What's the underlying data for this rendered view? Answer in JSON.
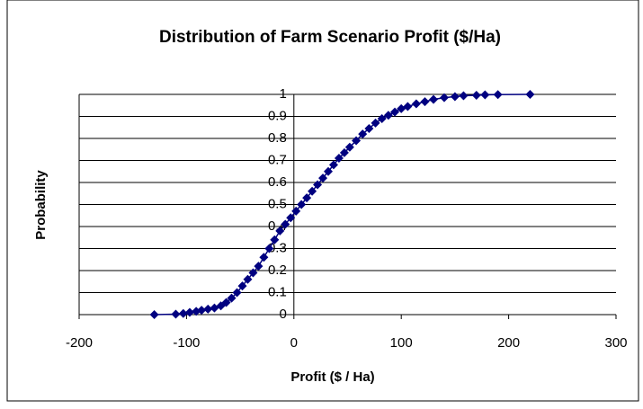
{
  "chart_data": {
    "type": "scatter_line",
    "title": "Distribution of Farm Scenario Profit ($/Ha)",
    "x_label": "Profit ($ / Ha)",
    "y_label": "Probability",
    "xlim": [
      -200,
      300
    ],
    "xticks": [
      -200,
      -100,
      0,
      100,
      200,
      300
    ],
    "ylim": [
      0,
      1
    ],
    "yticks": [
      0,
      0.1,
      0.2,
      0.3,
      0.4,
      0.5,
      0.6,
      0.7,
      0.8,
      0.9,
      1
    ],
    "grid": true,
    "color": "#000080",
    "x": [
      -130,
      -110,
      -103,
      -97,
      -91,
      -86,
      -80,
      -74,
      -68,
      -63,
      -58,
      -53,
      -48,
      -43,
      -38,
      -33,
      -28,
      -23,
      -18,
      -13,
      -8,
      -3,
      2,
      7,
      12,
      17,
      22,
      27,
      32,
      37,
      42,
      47,
      52,
      58,
      64,
      70,
      76,
      82,
      88,
      94,
      100,
      106,
      114,
      122,
      130,
      140,
      150,
      158,
      170,
      178,
      190,
      220
    ],
    "values": [
      0,
      0.002,
      0.005,
      0.01,
      0.015,
      0.02,
      0.025,
      0.03,
      0.04,
      0.055,
      0.075,
      0.1,
      0.13,
      0.16,
      0.19,
      0.22,
      0.26,
      0.3,
      0.34,
      0.38,
      0.41,
      0.44,
      0.47,
      0.5,
      0.53,
      0.56,
      0.59,
      0.62,
      0.65,
      0.68,
      0.71,
      0.735,
      0.76,
      0.79,
      0.82,
      0.845,
      0.87,
      0.89,
      0.905,
      0.92,
      0.935,
      0.945,
      0.957,
      0.967,
      0.977,
      0.985,
      0.99,
      0.994,
      0.996,
      0.998,
      0.999,
      1
    ]
  }
}
